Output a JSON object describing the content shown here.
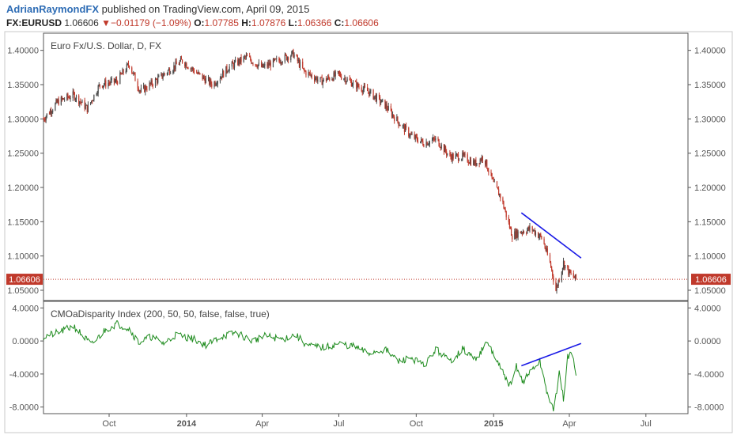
{
  "header": {
    "author": "AdrianRaymondFX",
    "published": "published on TradingView.com, April 09, 2015",
    "symbol": "FX:EURUSD",
    "last": "1.06606",
    "change": "−0.01179 (−1.09%)",
    "o_label": "O:",
    "o_value": "1.07785",
    "h_label": "H:",
    "h_value": "1.07876",
    "l_label": "L:",
    "l_value": "1.06366",
    "c_label": "C:",
    "c_value": "1.06606"
  },
  "colors": {
    "up": "#4a4a4a",
    "down": "#c0392b",
    "trendline": "#1a1ae6",
    "indicator": "#1f8c1f",
    "price_line": "#c0392b",
    "axis_text": "#555555"
  },
  "chart_data": [
    {
      "type": "candlestick",
      "title": "Euro Fx/U.S. Dollar, D, FX",
      "ylim": [
        1.035,
        1.425
      ],
      "y_ticks": [
        "1.40000",
        "1.35000",
        "1.30000",
        "1.25000",
        "1.20000",
        "1.15000",
        "1.10000",
        "1.05000"
      ],
      "y_tick_values": [
        1.4,
        1.35,
        1.3,
        1.25,
        1.2,
        1.15,
        1.1,
        1.05
      ],
      "last_price_label": "1.06606",
      "last_price": 1.06606,
      "x_ticks": [
        "Oct",
        "2014",
        "Apr",
        "Jul",
        "Oct",
        "2015",
        "Apr",
        "Jul"
      ],
      "x_tick_dates": [
        "2013-10-01",
        "2014-01-01",
        "2014-04-01",
        "2014-07-01",
        "2014-10-01",
        "2015-01-01",
        "2015-04-01",
        "2015-07-01"
      ],
      "x_range": [
        "2013-07-15",
        "2015-08-20"
      ],
      "grid": false,
      "path": [
        [
          "2013-07-15",
          1.3
        ],
        [
          "2013-08-01",
          1.325
        ],
        [
          "2013-08-20",
          1.335
        ],
        [
          "2013-09-05",
          1.315
        ],
        [
          "2013-09-20",
          1.35
        ],
        [
          "2013-10-10",
          1.355
        ],
        [
          "2013-10-25",
          1.38
        ],
        [
          "2013-11-07",
          1.34
        ],
        [
          "2013-11-25",
          1.355
        ],
        [
          "2013-12-10",
          1.37
        ],
        [
          "2013-12-27",
          1.385
        ],
        [
          "2014-01-15",
          1.365
        ],
        [
          "2014-02-01",
          1.35
        ],
        [
          "2014-02-20",
          1.375
        ],
        [
          "2014-03-13",
          1.39
        ],
        [
          "2014-04-01",
          1.375
        ],
        [
          "2014-04-20",
          1.385
        ],
        [
          "2014-05-08",
          1.395
        ],
        [
          "2014-05-20",
          1.37
        ],
        [
          "2014-06-10",
          1.355
        ],
        [
          "2014-07-01",
          1.365
        ],
        [
          "2014-07-20",
          1.35
        ],
        [
          "2014-08-05",
          1.34
        ],
        [
          "2014-08-25",
          1.32
        ],
        [
          "2014-09-10",
          1.295
        ],
        [
          "2014-09-25",
          1.275
        ],
        [
          "2014-10-10",
          1.265
        ],
        [
          "2014-10-25",
          1.27
        ],
        [
          "2014-11-10",
          1.245
        ],
        [
          "2014-11-25",
          1.245
        ],
        [
          "2014-12-10",
          1.235
        ],
        [
          "2014-12-20",
          1.245
        ],
        [
          "2015-01-01",
          1.205
        ],
        [
          "2015-01-10",
          1.185
        ],
        [
          "2015-01-23",
          1.13
        ],
        [
          "2015-02-01",
          1.135
        ],
        [
          "2015-02-15",
          1.14
        ],
        [
          "2015-02-28",
          1.125
        ],
        [
          "2015-03-10",
          1.085
        ],
        [
          "2015-03-16",
          1.05
        ],
        [
          "2015-03-25",
          1.09
        ],
        [
          "2015-04-01",
          1.075
        ],
        [
          "2015-04-09",
          1.066
        ]
      ],
      "trendline": {
        "from": [
          "2015-02-03",
          1.163
        ],
        "to": [
          "2015-04-15",
          1.097
        ]
      }
    },
    {
      "type": "line",
      "title": "CMOaDisparity Index (200, 50, 50, false, false, true)",
      "ylim": [
        -8.8,
        4.8
      ],
      "y_ticks": [
        "4.0000",
        "0.0000",
        "-4.0000",
        "-8.0000"
      ],
      "y_tick_values": [
        4,
        0,
        -4,
        -8
      ],
      "x_range": [
        "2013-07-15",
        "2015-08-20"
      ],
      "grid": false,
      "path": [
        [
          "2013-07-15",
          0.5
        ],
        [
          "2013-08-01",
          1.0
        ],
        [
          "2013-08-20",
          1.8
        ],
        [
          "2013-09-10",
          -0.5
        ],
        [
          "2013-09-25",
          1.2
        ],
        [
          "2013-10-10",
          2.1
        ],
        [
          "2013-10-25",
          1.5
        ],
        [
          "2013-11-05",
          -0.2
        ],
        [
          "2013-11-20",
          0.5
        ],
        [
          "2013-12-05",
          -0.3
        ],
        [
          "2013-12-20",
          0.8
        ],
        [
          "2014-01-10",
          0.2
        ],
        [
          "2014-01-25",
          -0.5
        ],
        [
          "2014-02-10",
          0.5
        ],
        [
          "2014-03-01",
          1.0
        ],
        [
          "2014-03-20",
          0.0
        ],
        [
          "2014-04-05",
          0.6
        ],
        [
          "2014-04-25",
          0.2
        ],
        [
          "2014-05-10",
          0.8
        ],
        [
          "2014-05-25",
          -0.6
        ],
        [
          "2014-06-15",
          -0.8
        ],
        [
          "2014-07-01",
          -0.3
        ],
        [
          "2014-07-20",
          -0.7
        ],
        [
          "2014-08-05",
          -1.5
        ],
        [
          "2014-08-25",
          -1.0
        ],
        [
          "2014-09-10",
          -2.5
        ],
        [
          "2014-09-25",
          -2.0
        ],
        [
          "2014-10-10",
          -3.0
        ],
        [
          "2014-10-25",
          -1.0
        ],
        [
          "2014-11-10",
          -2.5
        ],
        [
          "2014-11-25",
          -1.0
        ],
        [
          "2014-12-10",
          -2.2
        ],
        [
          "2014-12-25",
          -0.2
        ],
        [
          "2015-01-05",
          -2.5
        ],
        [
          "2015-01-15",
          -4.5
        ],
        [
          "2015-01-22",
          -5.5
        ],
        [
          "2015-01-28",
          -3.0
        ],
        [
          "2015-02-05",
          -5.0
        ],
        [
          "2015-02-15",
          -3.5
        ],
        [
          "2015-02-25",
          -2.5
        ],
        [
          "2015-03-05",
          -6.0
        ],
        [
          "2015-03-13",
          -8.5
        ],
        [
          "2015-03-20",
          -4.0
        ],
        [
          "2015-03-25",
          -7.0
        ],
        [
          "2015-03-30",
          -2.0
        ],
        [
          "2015-04-04",
          -1.5
        ],
        [
          "2015-04-09",
          -3.8
        ]
      ],
      "trendline": {
        "from": [
          "2015-02-03",
          -3.0
        ],
        "to": [
          "2015-04-15",
          -0.3
        ]
      }
    }
  ]
}
